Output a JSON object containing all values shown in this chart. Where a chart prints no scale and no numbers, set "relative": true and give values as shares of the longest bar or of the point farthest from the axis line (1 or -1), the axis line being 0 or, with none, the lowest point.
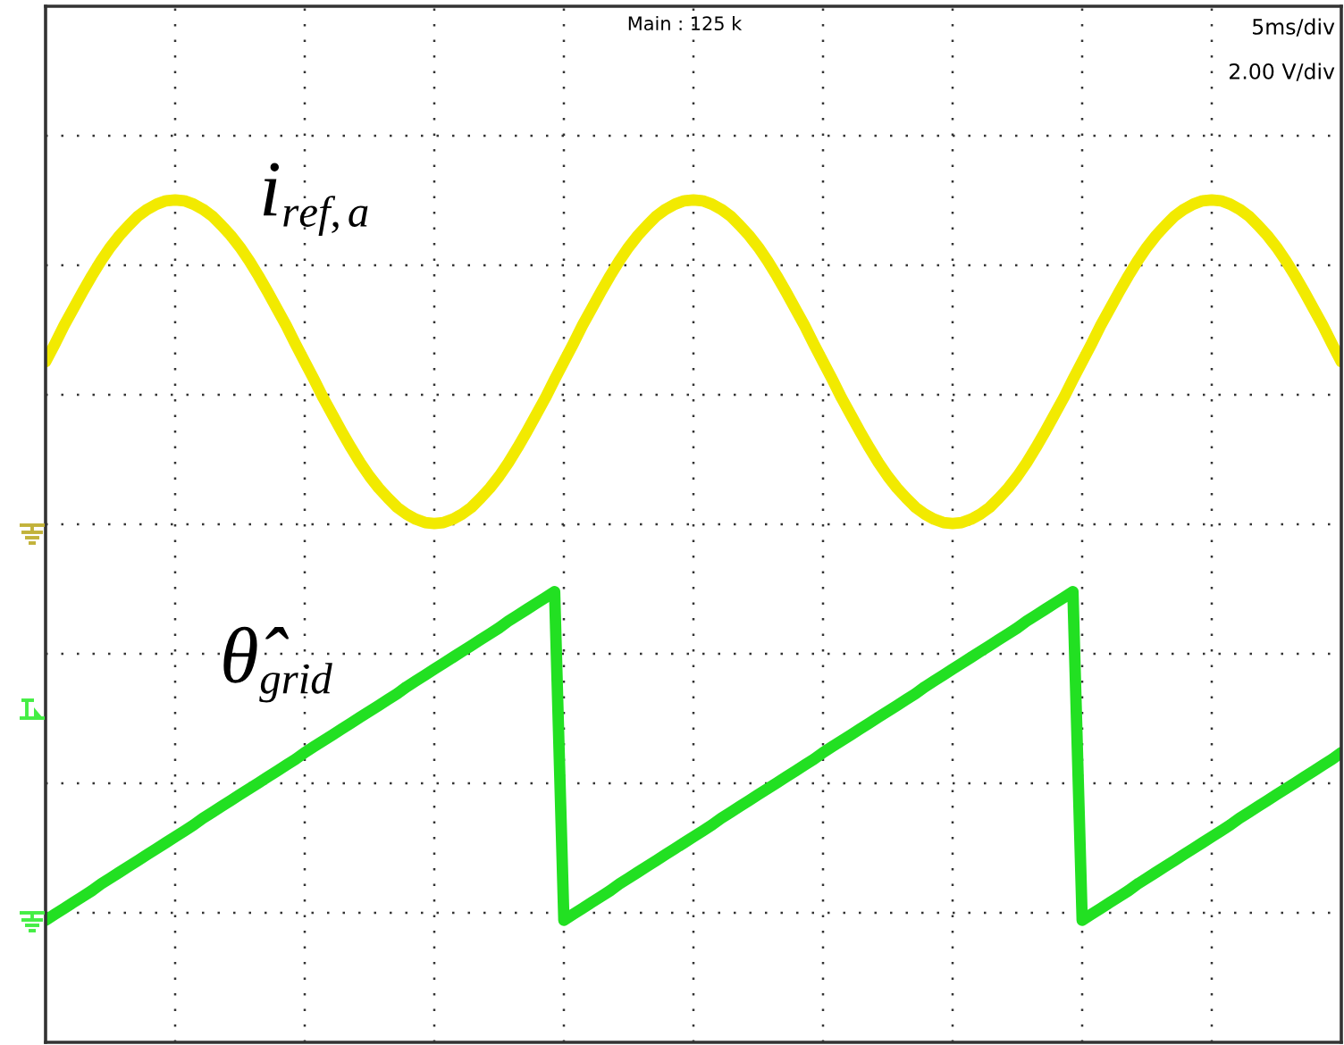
{
  "chart_data": {
    "type": "line",
    "relative": true,
    "grid": true,
    "line_style": "solid",
    "categories": [
      null,
      null,
      null,
      null,
      null,
      null,
      null,
      null,
      null,
      null,
      null,
      null,
      null,
      null,
      null,
      null,
      null,
      null,
      null,
      null,
      null,
      null,
      null,
      null,
      null,
      null,
      null,
      null,
      null,
      null,
      null,
      null,
      null,
      null,
      null,
      null,
      null,
      null,
      null,
      null,
      null,
      null,
      null,
      null,
      null,
      null,
      null,
      null,
      null,
      null,
      null,
      null,
      null,
      null,
      null,
      null,
      null,
      null,
      null,
      null,
      null,
      null,
      null,
      null,
      null,
      null,
      null,
      null,
      null,
      null,
      null,
      null,
      null,
      null,
      null,
      null,
      null,
      null,
      null,
      null,
      null,
      null,
      null,
      null,
      null,
      null,
      null,
      null,
      null,
      null,
      null,
      null,
      null,
      null,
      null,
      null,
      null,
      null,
      null,
      null,
      null,
      null,
      null,
      null,
      null,
      null,
      null,
      null,
      null,
      null,
      null,
      null,
      null,
      null,
      null,
      null,
      null,
      null,
      null,
      null,
      null,
      null,
      null,
      null,
      null,
      null,
      null,
      null,
      null,
      null,
      null,
      null,
      null,
      null,
      null,
      null,
      null,
      null,
      null,
      null,
      null
    ],
    "series": [
      {
        "name": "i$_{ref,a}$",
        "color": "#f2ea00",
        "values": [
          0.808,
          0.829,
          0.851,
          0.871,
          0.891,
          0.91,
          0.928,
          0.944,
          0.958,
          0.97,
          0.981,
          0.989,
          0.995,
          0.999,
          1,
          0.999,
          0.995,
          0.989,
          0.981,
          0.97,
          0.958,
          0.944,
          0.928,
          0.91,
          0.891,
          0.871,
          0.851,
          0.829,
          0.808,
          0.787,
          0.765,
          0.745,
          0.725,
          0.706,
          0.688,
          0.672,
          0.658,
          0.646,
          0.635,
          0.627,
          0.621,
          0.617,
          0.616,
          0.617,
          0.621,
          0.627,
          0.635,
          0.646,
          0.658,
          0.672,
          0.688,
          0.706,
          0.725,
          0.745,
          0.765,
          0.787,
          0.808,
          0.829,
          0.851,
          0.871,
          0.891,
          0.91,
          0.928,
          0.944,
          0.958,
          0.97,
          0.981,
          0.989,
          0.995,
          0.999,
          1,
          0.999,
          0.995,
          0.989,
          0.981,
          0.97,
          0.958,
          0.944,
          0.928,
          0.91,
          0.891,
          0.871,
          0.851,
          0.829,
          0.808,
          0.787,
          0.765,
          0.745,
          0.725,
          0.706,
          0.688,
          0.672,
          0.658,
          0.646,
          0.635,
          0.627,
          0.621,
          0.617,
          0.616,
          0.617,
          0.621,
          0.627,
          0.635,
          0.646,
          0.658,
          0.672,
          0.688,
          0.706,
          0.725,
          0.745,
          0.765,
          0.787,
          0.808,
          0.829,
          0.851,
          0.871,
          0.891,
          0.91,
          0.928,
          0.944,
          0.958,
          0.97,
          0.981,
          0.989,
          0.995,
          0.999,
          1,
          0.999,
          0.995,
          0.989,
          0.981,
          0.97,
          0.958,
          0.944,
          0.928,
          0.91,
          0.891,
          0.871,
          0.851,
          0.829,
          0.808
        ]
      },
      {
        "name": "θ̂$_{grid}$",
        "color": "#22e022",
        "values": [
          0.145,
          0.152,
          0.159,
          0.166,
          0.173,
          0.18,
          0.188,
          0.195,
          0.202,
          0.209,
          0.216,
          0.223,
          0.23,
          0.237,
          0.244,
          0.251,
          0.258,
          0.266,
          0.273,
          0.28,
          0.287,
          0.294,
          0.301,
          0.308,
          0.315,
          0.322,
          0.329,
          0.336,
          0.344,
          0.351,
          0.358,
          0.365,
          0.372,
          0.379,
          0.386,
          0.393,
          0.4,
          0.407,
          0.414,
          0.422,
          0.429,
          0.436,
          0.443,
          0.45,
          0.457,
          0.464,
          0.471,
          0.478,
          0.485,
          0.492,
          0.5,
          0.507,
          0.514,
          0.521,
          0.528,
          0.535,
          0.145,
          0.152,
          0.159,
          0.166,
          0.173,
          0.18,
          0.188,
          0.195,
          0.202,
          0.209,
          0.216,
          0.223,
          0.23,
          0.237,
          0.244,
          0.251,
          0.258,
          0.266,
          0.273,
          0.28,
          0.287,
          0.294,
          0.301,
          0.308,
          0.315,
          0.322,
          0.329,
          0.336,
          0.344,
          0.351,
          0.358,
          0.365,
          0.372,
          0.379,
          0.386,
          0.393,
          0.4,
          0.407,
          0.414,
          0.422,
          0.429,
          0.436,
          0.443,
          0.45,
          0.457,
          0.464,
          0.471,
          0.478,
          0.485,
          0.492,
          0.5,
          0.507,
          0.514,
          0.521,
          0.528,
          0.535,
          0.145,
          0.152,
          0.159,
          0.166,
          0.173,
          0.18,
          0.188,
          0.195,
          0.202,
          0.209,
          0.216,
          0.223,
          0.23,
          0.237,
          0.244,
          0.251,
          0.258,
          0.266,
          0.273,
          0.28,
          0.287,
          0.294,
          0.301,
          0.308,
          0.315,
          0.322,
          0.329,
          0.336,
          0.344
        ]
      }
    ],
    "annotations": [
      "Main : 125 k",
      "5ms/div",
      "2.00 V/div"
    ]
  }
}
